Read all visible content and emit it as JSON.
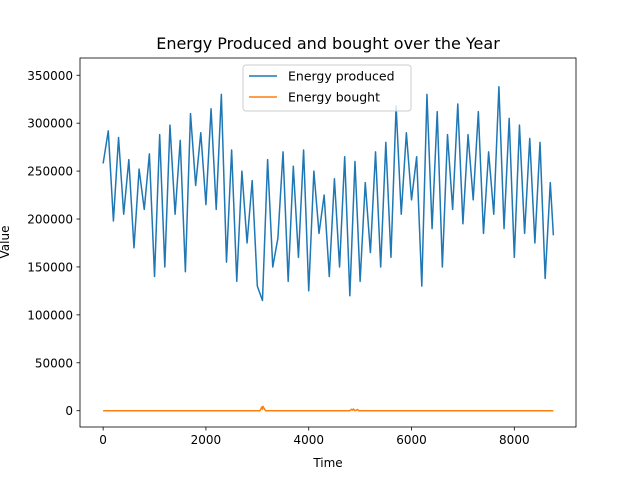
{
  "chart_data": {
    "type": "line",
    "title": "Energy Produced and bought over the Year",
    "xlabel": "Time",
    "ylabel": "Value",
    "xlim": [
      -450,
      9200
    ],
    "ylim": [
      -17000,
      368000
    ],
    "xticks": [
      0,
      2000,
      4000,
      6000,
      8000
    ],
    "yticks": [
      0,
      50000,
      100000,
      150000,
      200000,
      250000,
      300000,
      350000
    ],
    "grid": false,
    "legend_position": "top-center",
    "series": [
      {
        "name": "Energy produced",
        "color": "#1f77b4",
        "x": [
          0,
          100,
          200,
          300,
          400,
          500,
          600,
          700,
          800,
          900,
          1000,
          1100,
          1200,
          1300,
          1400,
          1500,
          1600,
          1700,
          1800,
          1900,
          2000,
          2100,
          2200,
          2300,
          2400,
          2500,
          2600,
          2700,
          2800,
          2900,
          3000,
          3100,
          3200,
          3300,
          3400,
          3500,
          3600,
          3700,
          3800,
          3900,
          4000,
          4100,
          4200,
          4300,
          4400,
          4500,
          4600,
          4700,
          4800,
          4900,
          5000,
          5100,
          5200,
          5300,
          5400,
          5500,
          5600,
          5700,
          5800,
          5900,
          6000,
          6100,
          6200,
          6300,
          6400,
          6500,
          6600,
          6700,
          6800,
          6900,
          7000,
          7100,
          7200,
          7300,
          7400,
          7500,
          7600,
          7700,
          7800,
          7900,
          8000,
          8100,
          8200,
          8300,
          8400,
          8500,
          8600,
          8700,
          8760
        ],
        "y": [
          258000,
          292000,
          198000,
          285000,
          205000,
          262000,
          170000,
          252000,
          210000,
          268000,
          140000,
          288000,
          150000,
          298000,
          205000,
          282000,
          145000,
          310000,
          235000,
          290000,
          215000,
          315000,
          210000,
          330000,
          155000,
          272000,
          135000,
          250000,
          175000,
          240000,
          130000,
          115000,
          262000,
          150000,
          180000,
          270000,
          135000,
          255000,
          160000,
          272000,
          125000,
          250000,
          185000,
          225000,
          140000,
          242000,
          150000,
          265000,
          120000,
          260000,
          135000,
          238000,
          165000,
          270000,
          150000,
          280000,
          160000,
          318000,
          205000,
          290000,
          220000,
          265000,
          130000,
          330000,
          190000,
          312000,
          150000,
          288000,
          210000,
          320000,
          195000,
          288000,
          220000,
          312000,
          185000,
          270000,
          205000,
          338000,
          190000,
          305000,
          160000,
          298000,
          185000,
          284000,
          175000,
          280000,
          138000,
          238000,
          183000
        ]
      },
      {
        "name": "Energy bought",
        "color": "#ff7f0e",
        "x": [
          0,
          3050,
          3090,
          3100,
          3110,
          3160,
          4800,
          4830,
          4850,
          4870,
          4900,
          4950,
          4970,
          5000,
          8760
        ],
        "y": [
          0,
          0,
          4000,
          1500,
          4500,
          0,
          0,
          1500,
          500,
          1800,
          0,
          1200,
          0,
          0,
          0
        ]
      }
    ]
  }
}
